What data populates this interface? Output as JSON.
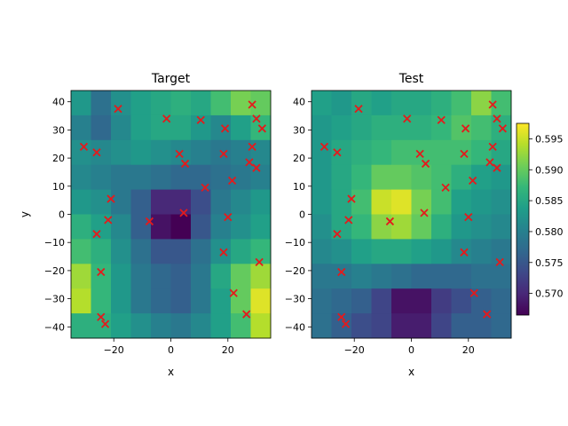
{
  "chart_data": [
    {
      "type": "heatmap",
      "title": "Target",
      "xlabel": "x",
      "ylabel": "y",
      "xlim": [
        -35,
        35
      ],
      "ylim": [
        -44,
        44
      ],
      "xticks": [
        -20,
        0,
        20
      ],
      "yticks": [
        -40,
        -30,
        -20,
        -10,
        0,
        10,
        20,
        30,
        40
      ],
      "x_edges": [
        -35,
        -28,
        -21,
        -14,
        -7,
        0,
        7,
        14,
        21,
        28,
        35
      ],
      "y_edges": [
        -44,
        -35.2,
        -26.4,
        -17.6,
        -8.8,
        0,
        8.8,
        17.6,
        26.4,
        35.2,
        44
      ],
      "values": [
        [
          0.583,
          0.578,
          0.582,
          0.584,
          0.585,
          0.586,
          0.585,
          0.588,
          0.591,
          0.59
        ],
        [
          0.58,
          0.577,
          0.581,
          0.584,
          0.585,
          0.585,
          0.583,
          0.581,
          0.584,
          0.587
        ],
        [
          0.582,
          0.581,
          0.582,
          0.583,
          0.582,
          0.581,
          0.58,
          0.579,
          0.58,
          0.581
        ],
        [
          0.581,
          0.58,
          0.579,
          0.579,
          0.578,
          0.577,
          0.577,
          0.578,
          0.579,
          0.58
        ],
        [
          0.583,
          0.582,
          0.579,
          0.576,
          0.57,
          0.57,
          0.574,
          0.579,
          0.581,
          0.583
        ],
        [
          0.586,
          0.584,
          0.581,
          0.576,
          0.568,
          0.566,
          0.575,
          0.58,
          0.582,
          0.584
        ],
        [
          0.588,
          0.586,
          0.582,
          0.578,
          0.575,
          0.575,
          0.578,
          0.582,
          0.585,
          0.587
        ],
        [
          0.593,
          0.587,
          0.583,
          0.579,
          0.577,
          0.576,
          0.579,
          0.585,
          0.59,
          0.593
        ],
        [
          0.594,
          0.587,
          0.583,
          0.579,
          0.577,
          0.576,
          0.579,
          0.584,
          0.59,
          0.596
        ],
        [
          0.586,
          0.586,
          0.584,
          0.582,
          0.58,
          0.579,
          0.581,
          0.584,
          0.588,
          0.594
        ]
      ],
      "value_order": "rows from top (y=44) to bottom (y=-44), columns left to right",
      "scatter": {
        "marker": "x",
        "color": "#e41a1c",
        "points": [
          [
            -18.5,
            37.5
          ],
          [
            -1.5,
            34.0
          ],
          [
            10.5,
            33.5
          ],
          [
            19.0,
            30.5
          ],
          [
            28.5,
            39.0
          ],
          [
            30.0,
            34.0
          ],
          [
            32.0,
            30.5
          ],
          [
            -30.5,
            24.0
          ],
          [
            -26.0,
            22.0
          ],
          [
            3.0,
            21.5
          ],
          [
            5.0,
            18.0
          ],
          [
            18.5,
            21.5
          ],
          [
            28.5,
            24.0
          ],
          [
            27.5,
            18.5
          ],
          [
            30.0,
            16.5
          ],
          [
            12.0,
            9.5
          ],
          [
            21.5,
            12.0
          ],
          [
            -21.0,
            5.5
          ],
          [
            -22.0,
            -2.0
          ],
          [
            -7.5,
            -2.5
          ],
          [
            4.5,
            0.5
          ],
          [
            20.0,
            -1.0
          ],
          [
            -26.0,
            -7.0
          ],
          [
            18.5,
            -13.5
          ],
          [
            31.0,
            -17.0
          ],
          [
            -24.5,
            -20.5
          ],
          [
            22.0,
            -28.0
          ],
          [
            26.5,
            -35.5
          ],
          [
            -24.5,
            -36.5
          ],
          [
            -23.0,
            -39.0
          ]
        ]
      }
    },
    {
      "type": "heatmap",
      "title": "Test",
      "xlabel": "x",
      "ylabel": "",
      "xlim": [
        -35,
        35
      ],
      "ylim": [
        -44,
        44
      ],
      "xticks": [
        -20,
        0,
        20
      ],
      "yticks": [
        -40,
        -30,
        -20,
        -10,
        0,
        10,
        20,
        30,
        40
      ],
      "x_edges": [
        -35,
        -28,
        -21,
        -14,
        -7,
        0,
        7,
        14,
        21,
        28,
        35
      ],
      "y_edges": [
        -44,
        -35.2,
        -26.4,
        -17.6,
        -8.8,
        0,
        8.8,
        17.6,
        26.4,
        35.2,
        44
      ],
      "values": [
        [
          0.584,
          0.583,
          0.585,
          0.584,
          0.585,
          0.585,
          0.586,
          0.588,
          0.592,
          0.588
        ],
        [
          0.583,
          0.584,
          0.585,
          0.586,
          0.586,
          0.586,
          0.587,
          0.589,
          0.588,
          0.586
        ],
        [
          0.583,
          0.585,
          0.586,
          0.587,
          0.588,
          0.588,
          0.588,
          0.588,
          0.587,
          0.585
        ],
        [
          0.583,
          0.585,
          0.587,
          0.59,
          0.59,
          0.589,
          0.588,
          0.586,
          0.584,
          0.583
        ],
        [
          0.583,
          0.585,
          0.588,
          0.595,
          0.596,
          0.591,
          0.588,
          0.584,
          0.583,
          0.582
        ],
        [
          0.582,
          0.585,
          0.587,
          0.592,
          0.593,
          0.59,
          0.586,
          0.583,
          0.582,
          0.581
        ],
        [
          0.581,
          0.582,
          0.584,
          0.585,
          0.585,
          0.584,
          0.583,
          0.581,
          0.58,
          0.579
        ],
        [
          0.579,
          0.579,
          0.58,
          0.579,
          0.578,
          0.577,
          0.577,
          0.577,
          0.578,
          0.578
        ],
        [
          0.578,
          0.577,
          0.576,
          0.573,
          0.568,
          0.568,
          0.572,
          0.574,
          0.576,
          0.577
        ],
        [
          0.578,
          0.576,
          0.574,
          0.573,
          0.569,
          0.569,
          0.573,
          0.576,
          0.576,
          0.577
        ]
      ],
      "value_order": "rows from top (y=44) to bottom (y=-44), columns left to right",
      "scatter": {
        "marker": "x",
        "color": "#e41a1c",
        "points": [
          [
            -18.5,
            37.5
          ],
          [
            -1.5,
            34.0
          ],
          [
            10.5,
            33.5
          ],
          [
            19.0,
            30.5
          ],
          [
            28.5,
            39.0
          ],
          [
            30.0,
            34.0
          ],
          [
            32.0,
            30.5
          ],
          [
            -30.5,
            24.0
          ],
          [
            -26.0,
            22.0
          ],
          [
            3.0,
            21.5
          ],
          [
            5.0,
            18.0
          ],
          [
            18.5,
            21.5
          ],
          [
            28.5,
            24.0
          ],
          [
            27.5,
            18.5
          ],
          [
            30.0,
            16.5
          ],
          [
            12.0,
            9.5
          ],
          [
            21.5,
            12.0
          ],
          [
            -21.0,
            5.5
          ],
          [
            -22.0,
            -2.0
          ],
          [
            -7.5,
            -2.5
          ],
          [
            4.5,
            0.5
          ],
          [
            20.0,
            -1.0
          ],
          [
            -26.0,
            -7.0
          ],
          [
            18.5,
            -13.5
          ],
          [
            31.0,
            -17.0
          ],
          [
            -24.5,
            -20.5
          ],
          [
            22.0,
            -28.0
          ],
          [
            26.5,
            -35.5
          ],
          [
            -24.5,
            -36.5
          ],
          [
            -23.0,
            -39.0
          ]
        ]
      }
    }
  ],
  "colorbar": {
    "colormap": "viridis",
    "range": [
      0.5665,
      0.5975
    ],
    "ticks": [
      0.57,
      0.575,
      0.58,
      0.585,
      0.59,
      0.595
    ],
    "tick_labels": [
      "0.570",
      "0.575",
      "0.580",
      "0.585",
      "0.590",
      "0.595"
    ],
    "label_visibility": "partially clipped at right edge"
  }
}
